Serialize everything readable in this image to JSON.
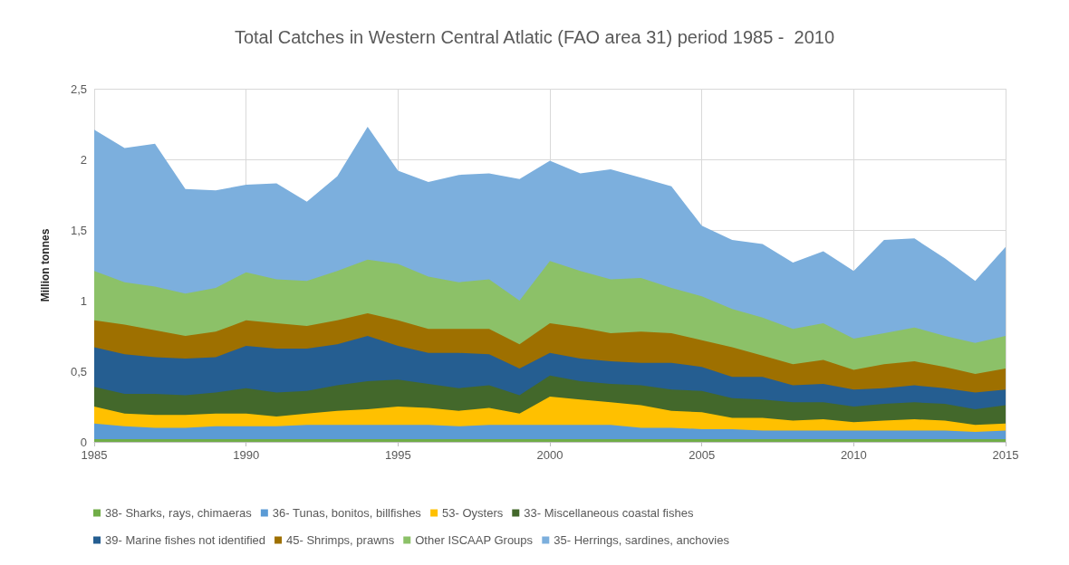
{
  "chart_data": {
    "type": "area",
    "stacked": true,
    "title": "Total Catches in Western Central Atlatic (FAO area 31) period 1985 -  2010",
    "ylabel": "Million tonnes",
    "x": [
      1985,
      1986,
      1987,
      1988,
      1989,
      1990,
      1991,
      1992,
      1993,
      1994,
      1995,
      1996,
      1997,
      1998,
      1999,
      2000,
      2001,
      2002,
      2003,
      2004,
      2005,
      2006,
      2007,
      2008,
      2009,
      2010,
      2011,
      2012,
      2013,
      2014,
      2015
    ],
    "xlim": [
      1985,
      2015
    ],
    "xticks": [
      1985,
      1990,
      1995,
      2000,
      2005,
      2010,
      2015
    ],
    "ylim": [
      0,
      2.5
    ],
    "yticks": [
      0,
      {
        "value": 0.5,
        "label": "0,5"
      },
      1,
      {
        "value": 1.5,
        "label": "1,5"
      },
      2,
      {
        "value": 2.5,
        "label": "2,5"
      }
    ],
    "grid": true,
    "legend": "bottom",
    "series": [
      {
        "name": "38- Sharks, rays, chimaeras",
        "color": "#70ad47",
        "values": [
          0.02,
          0.02,
          0.02,
          0.02,
          0.02,
          0.02,
          0.02,
          0.02,
          0.02,
          0.02,
          0.02,
          0.02,
          0.02,
          0.02,
          0.02,
          0.02,
          0.02,
          0.02,
          0.02,
          0.02,
          0.02,
          0.02,
          0.02,
          0.02,
          0.02,
          0.02,
          0.02,
          0.02,
          0.02,
          0.02,
          0.02
        ]
      },
      {
        "name": "36- Tunas, bonitos, billfishes",
        "color": "#5b9bd5",
        "values": [
          0.11,
          0.09,
          0.08,
          0.08,
          0.09,
          0.09,
          0.09,
          0.1,
          0.1,
          0.1,
          0.1,
          0.1,
          0.09,
          0.1,
          0.1,
          0.1,
          0.1,
          0.1,
          0.08,
          0.08,
          0.07,
          0.07,
          0.06,
          0.06,
          0.06,
          0.06,
          0.06,
          0.06,
          0.06,
          0.05,
          0.06
        ]
      },
      {
        "name": "53- Oysters",
        "color": "#ffc000",
        "values": [
          0.12,
          0.09,
          0.09,
          0.09,
          0.09,
          0.09,
          0.07,
          0.08,
          0.1,
          0.11,
          0.13,
          0.12,
          0.11,
          0.12,
          0.08,
          0.2,
          0.18,
          0.16,
          0.16,
          0.12,
          0.12,
          0.08,
          0.09,
          0.07,
          0.08,
          0.06,
          0.07,
          0.08,
          0.07,
          0.05,
          0.05
        ]
      },
      {
        "name": "33- Miscellaneous coastal fishes",
        "color": "#43682b",
        "values": [
          0.14,
          0.14,
          0.15,
          0.14,
          0.15,
          0.18,
          0.17,
          0.16,
          0.18,
          0.2,
          0.19,
          0.17,
          0.16,
          0.16,
          0.13,
          0.15,
          0.13,
          0.13,
          0.14,
          0.15,
          0.15,
          0.14,
          0.13,
          0.13,
          0.12,
          0.11,
          0.12,
          0.12,
          0.12,
          0.11,
          0.13
        ]
      },
      {
        "name": "39- Marine fishes not identified",
        "color": "#255e91",
        "values": [
          0.28,
          0.28,
          0.26,
          0.26,
          0.25,
          0.3,
          0.31,
          0.3,
          0.29,
          0.32,
          0.24,
          0.22,
          0.25,
          0.22,
          0.19,
          0.16,
          0.16,
          0.16,
          0.16,
          0.19,
          0.17,
          0.15,
          0.16,
          0.12,
          0.13,
          0.12,
          0.11,
          0.12,
          0.11,
          0.12,
          0.11
        ]
      },
      {
        "name": "45- Shrimps, prawns",
        "color": "#9e7000",
        "values": [
          0.19,
          0.21,
          0.19,
          0.16,
          0.18,
          0.18,
          0.18,
          0.16,
          0.17,
          0.16,
          0.18,
          0.17,
          0.17,
          0.18,
          0.17,
          0.21,
          0.22,
          0.2,
          0.22,
          0.21,
          0.19,
          0.21,
          0.15,
          0.15,
          0.17,
          0.14,
          0.17,
          0.17,
          0.15,
          0.13,
          0.15
        ]
      },
      {
        "name": "Other ISCAAP Groups",
        "color": "#8cc168",
        "values": [
          0.35,
          0.3,
          0.31,
          0.3,
          0.31,
          0.34,
          0.31,
          0.32,
          0.35,
          0.38,
          0.4,
          0.37,
          0.33,
          0.35,
          0.31,
          0.44,
          0.4,
          0.38,
          0.38,
          0.32,
          0.31,
          0.27,
          0.27,
          0.25,
          0.26,
          0.22,
          0.22,
          0.24,
          0.22,
          0.22,
          0.23
        ]
      },
      {
        "name": "35- Herrings, sardines, anchovies",
        "color": "#7cafdd",
        "values": [
          1.0,
          0.95,
          1.01,
          0.74,
          0.69,
          0.62,
          0.68,
          0.56,
          0.67,
          0.94,
          0.66,
          0.67,
          0.76,
          0.75,
          0.86,
          0.71,
          0.69,
          0.78,
          0.71,
          0.72,
          0.5,
          0.49,
          0.52,
          0.47,
          0.51,
          0.48,
          0.66,
          0.63,
          0.55,
          0.44,
          0.63
        ]
      }
    ]
  }
}
